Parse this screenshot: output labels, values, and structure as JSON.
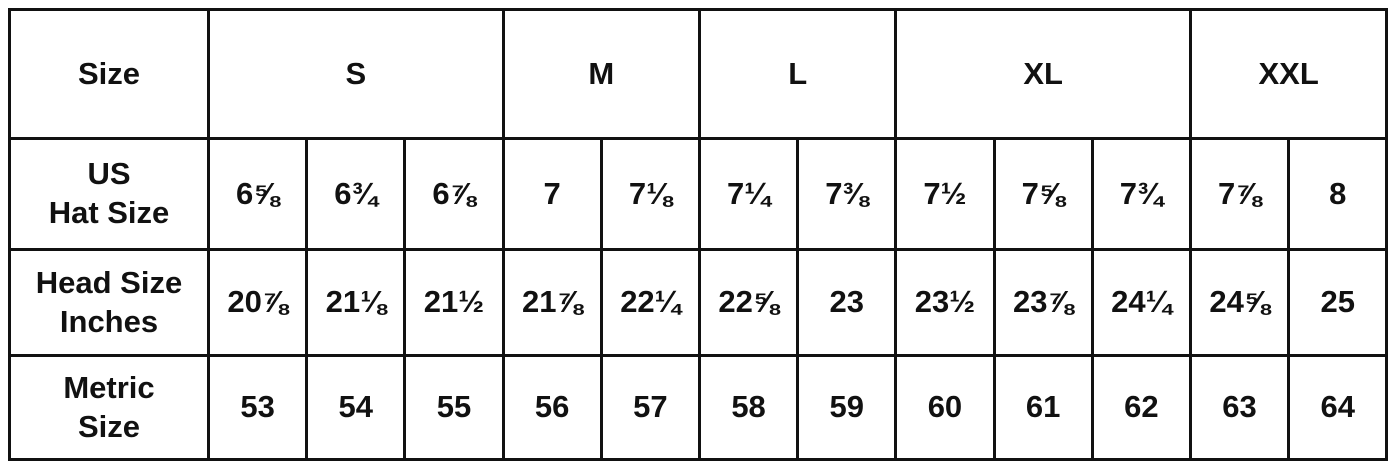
{
  "size_row": {
    "label": "Size",
    "groups": [
      {
        "label": "S",
        "span": 3
      },
      {
        "label": "M",
        "span": 2
      },
      {
        "label": "L",
        "span": 2
      },
      {
        "label": "XL",
        "span": 3
      },
      {
        "label": "XXL",
        "span": 2
      }
    ]
  },
  "rows": [
    {
      "label": [
        "US",
        "Hat Size"
      ],
      "values": [
        "6⅝",
        "6¾",
        "6⅞",
        "7",
        "7⅛",
        "7¼",
        "7⅜",
        "7½",
        "7⅝",
        "7¾",
        "7⅞",
        "8"
      ]
    },
    {
      "label": [
        "Head Size",
        "Inches"
      ],
      "values": [
        "20⅞",
        "21⅛",
        "21½",
        "21⅞",
        "22¼",
        "22⅝",
        "23",
        "23½",
        "23⅞",
        "24¼",
        "24⅝",
        "25"
      ]
    },
    {
      "label": [
        "Metric",
        "Size"
      ],
      "values": [
        "53",
        "54",
        "55",
        "56",
        "57",
        "58",
        "59",
        "60",
        "61",
        "62",
        "63",
        "64"
      ]
    }
  ]
}
